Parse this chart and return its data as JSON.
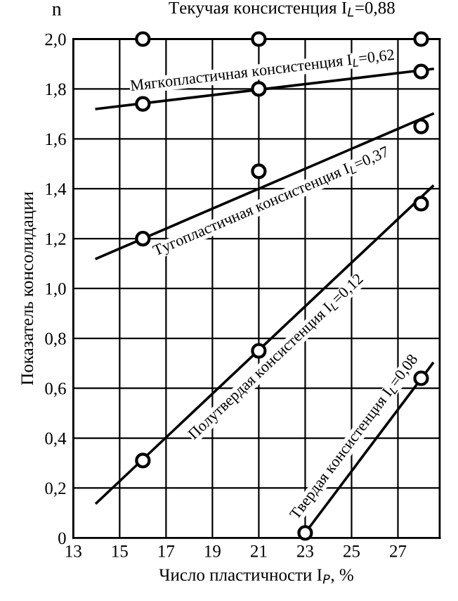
{
  "chart_data": {
    "type": "scatter",
    "xlabel": "Число пластичности I$_{P}$, %",
    "ylabel": "Показатель консолидации",
    "annotations": [
      "n"
    ],
    "xlim": [
      13,
      28.8
    ],
    "ylim": [
      0,
      2.0
    ],
    "xticks": [
      13,
      15,
      17,
      19,
      21,
      23,
      25,
      27
    ],
    "yticks": [
      0,
      {
        "value": 0.2,
        "label": "0,2"
      },
      {
        "value": 0.4,
        "label": "0,4"
      },
      {
        "value": 0.6,
        "label": "0,6"
      },
      {
        "value": 0.8,
        "label": "0,8"
      },
      {
        "value": 1.0,
        "label": "1,0"
      },
      {
        "value": 1.2,
        "label": "1,2"
      },
      {
        "value": 1.4,
        "label": "1,4"
      },
      {
        "value": 1.6,
        "label": "1,6"
      },
      {
        "value": 1.8,
        "label": "1,8"
      },
      {
        "value": 2.0,
        "label": "2,0"
      }
    ],
    "grid": true,
    "marker": "circle",
    "line_style": "solid",
    "legend": false,
    "series": [
      {
        "name": "Текучая консистенция I$_{L}$=0,88",
        "color": "#000000",
        "x": [
          16,
          21,
          28
        ],
        "values": [
          2.0,
          2.0,
          2.0
        ]
      },
      {
        "type": "line",
        "marker": "none",
        "color": "#000000",
        "x": [
          14,
          28.5
        ],
        "values": [
          1.72,
          1.88
        ]
      },
      {
        "name": "Мягкопластичная консистенция I$_{L}$=0,62",
        "color": "#000000",
        "x": [
          16,
          21,
          28
        ],
        "values": [
          1.74,
          1.8,
          1.87
        ]
      },
      {
        "type": "line",
        "marker": "none",
        "color": "#000000",
        "x": [
          14,
          28.5
        ],
        "values": [
          1.12,
          1.7
        ]
      },
      {
        "name": "Тугопластичная консистенция I$_{L}$=0,37",
        "color": "#000000",
        "x": [
          16,
          21,
          28
        ],
        "values": [
          1.2,
          1.47,
          1.65
        ]
      },
      {
        "type": "line",
        "marker": "none",
        "color": "#000000",
        "x": [
          14,
          28.5
        ],
        "values": [
          0.14,
          1.41
        ]
      },
      {
        "name": "Полутвердая консистенция I$_{L}$=0,12",
        "color": "#000000",
        "x": [
          16,
          21,
          28
        ],
        "values": [
          0.31,
          0.75,
          1.34
        ]
      },
      {
        "type": "line",
        "marker": "none",
        "color": "#000000",
        "x": [
          23,
          28.5
        ],
        "values": [
          0.02,
          0.7
        ]
      },
      {
        "name": "Твердая консистенция I$_{L}$=0,08",
        "color": "#000000",
        "x": [
          23,
          28
        ],
        "values": [
          0.02,
          0.64
        ]
      }
    ]
  }
}
